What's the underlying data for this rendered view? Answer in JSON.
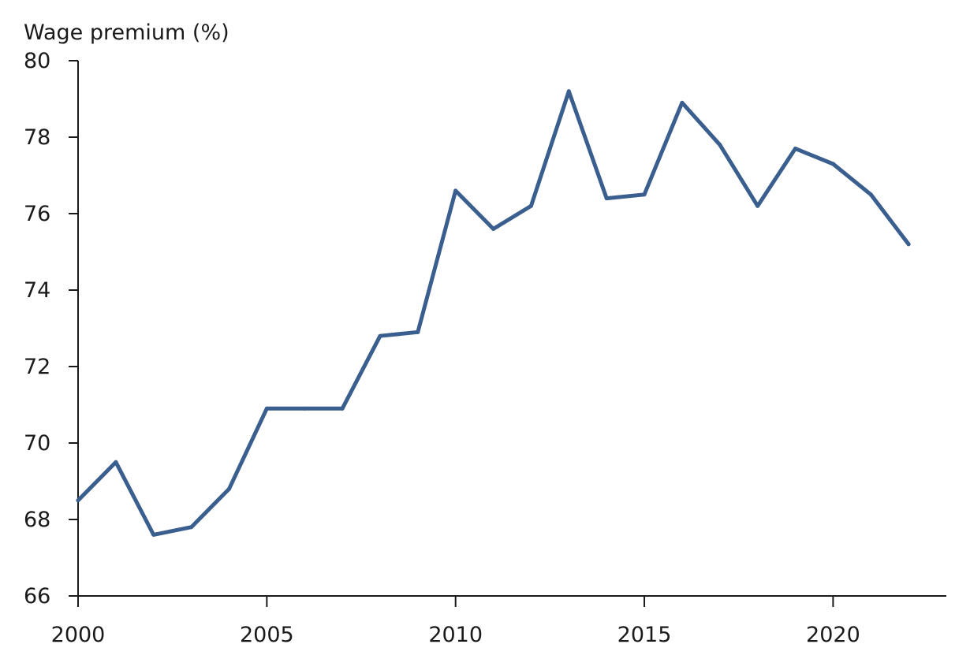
{
  "chart_data": {
    "type": "line",
    "ylabel": "Wage premium (%)",
    "xlabel": "",
    "title": "",
    "xlim": [
      2000,
      2023
    ],
    "ylim": [
      66,
      80
    ],
    "x_ticks": [
      2000,
      2005,
      2010,
      2015,
      2020
    ],
    "y_ticks": [
      66,
      68,
      70,
      72,
      74,
      76,
      78,
      80
    ],
    "grid": false,
    "legend": "none",
    "series": [
      {
        "color": "#3a5f8f",
        "x": [
          2000,
          2001,
          2002,
          2003,
          2004,
          2005,
          2006,
          2007,
          2008,
          2009,
          2010,
          2011,
          2012,
          2013,
          2014,
          2015,
          2016,
          2017,
          2018,
          2019,
          2020,
          2021,
          2022
        ],
        "y": [
          68.5,
          69.5,
          67.6,
          67.8,
          68.8,
          70.9,
          70.9,
          70.9,
          72.8,
          72.9,
          76.6,
          75.6,
          76.2,
          79.2,
          76.4,
          76.5,
          78.9,
          77.8,
          76.2,
          77.7,
          77.3,
          76.5,
          75.2
        ]
      }
    ]
  }
}
